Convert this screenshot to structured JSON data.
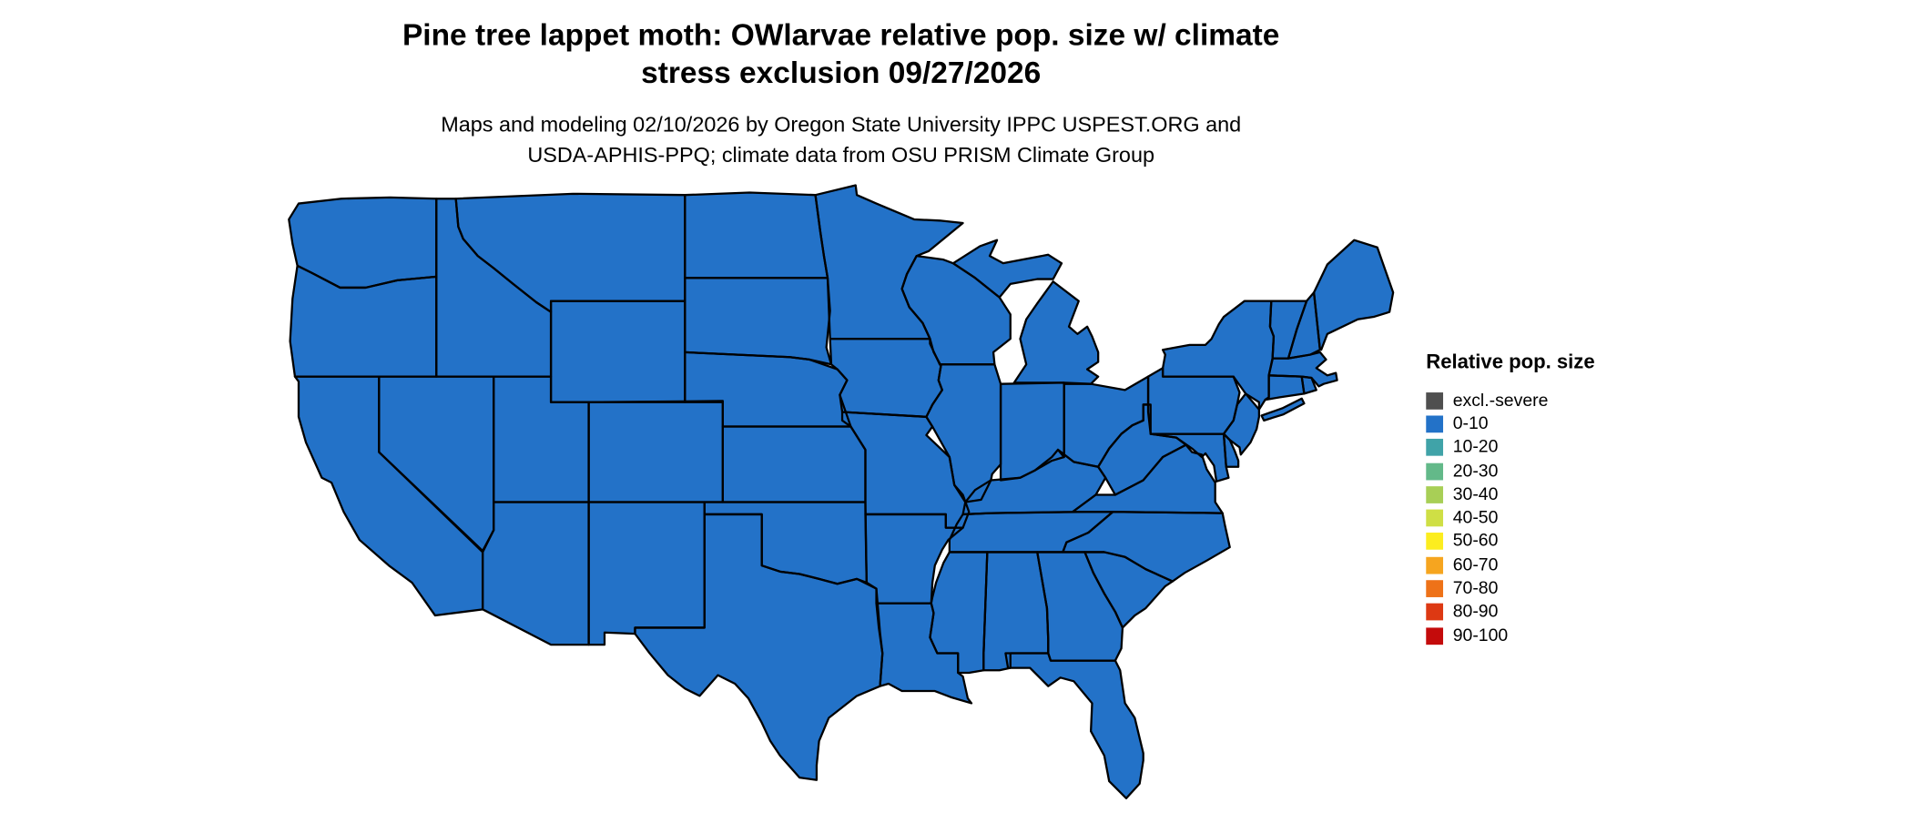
{
  "title": {
    "line1": "Pine tree lappet moth: OWlarvae relative pop. size w/ climate",
    "line2": "stress exclusion 09/27/2026"
  },
  "subtitle": {
    "line1": "Maps and modeling 02/10/2026 by Oregon State University IPPC USPEST.ORG and",
    "line2": "USDA-APHIS-PPQ; climate data from OSU PRISM Climate Group"
  },
  "legend": {
    "title": "Relative pop. size",
    "items": [
      {
        "label": "excl.-severe",
        "color": "#4f4f4f"
      },
      {
        "label": "0-10",
        "color": "#2372c8"
      },
      {
        "label": "10-20",
        "color": "#40a3a8"
      },
      {
        "label": "20-30",
        "color": "#63b989"
      },
      {
        "label": "30-40",
        "color": "#a8cf56"
      },
      {
        "label": "40-50",
        "color": "#cfdf45"
      },
      {
        "label": "50-60",
        "color": "#fced1f"
      },
      {
        "label": "60-70",
        "color": "#f6a51f"
      },
      {
        "label": "70-80",
        "color": "#ee7218"
      },
      {
        "label": "80-90",
        "color": "#dd3913"
      },
      {
        "label": "90-100",
        "color": "#c40b0b"
      }
    ]
  },
  "map": {
    "colors": {
      "base": "#2372c8",
      "excluded": "#4f4f4f",
      "border": "#000000",
      "background": "#ffffff"
    }
  }
}
